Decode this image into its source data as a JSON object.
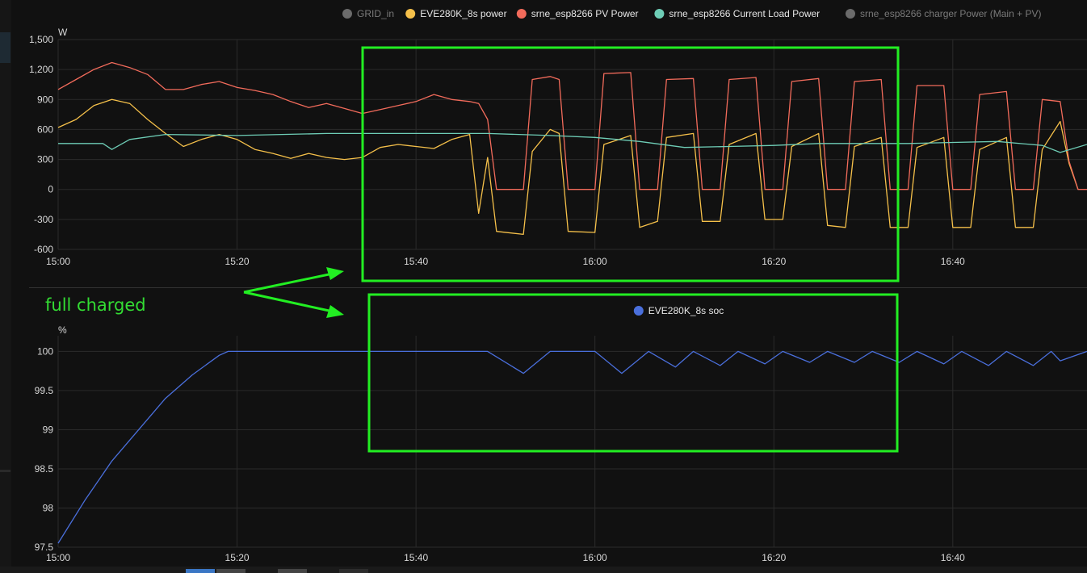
{
  "annotation": {
    "text": "full charged",
    "color": "#22ee22"
  },
  "chart_data": [
    {
      "type": "line",
      "unit_label": "W",
      "x_axis": {
        "range": [
          "15:00",
          "16:55"
        ],
        "ticks": [
          "15:00",
          "15:20",
          "15:40",
          "16:00",
          "16:20",
          "16:40"
        ]
      },
      "y_axis": {
        "range": [
          -600,
          1500
        ],
        "ticks": [
          "-600",
          "-300",
          "0",
          "300",
          "600",
          "900",
          "1,200",
          "1,500"
        ]
      },
      "grid": true,
      "legend_position": "top-right",
      "series": [
        {
          "name": "GRID_in",
          "color": "#6b6b6b",
          "hidden": true,
          "points": []
        },
        {
          "name": "EVE280K_8s power",
          "color": "#f5c04a",
          "points": [
            [
              "15:00",
              620
            ],
            [
              "15:02",
              700
            ],
            [
              "15:04",
              840
            ],
            [
              "15:06",
              900
            ],
            [
              "15:08",
              860
            ],
            [
              "15:10",
              700
            ],
            [
              "15:12",
              560
            ],
            [
              "15:14",
              430
            ],
            [
              "15:16",
              500
            ],
            [
              "15:18",
              550
            ],
            [
              "15:20",
              500
            ],
            [
              "15:22",
              400
            ],
            [
              "15:24",
              360
            ],
            [
              "15:26",
              310
            ],
            [
              "15:28",
              360
            ],
            [
              "15:30",
              320
            ],
            [
              "15:32",
              300
            ],
            [
              "15:34",
              320
            ],
            [
              "15:36",
              420
            ],
            [
              "15:38",
              450
            ],
            [
              "15:40",
              430
            ],
            [
              "15:42",
              410
            ],
            [
              "15:44",
              500
            ],
            [
              "15:46",
              550
            ],
            [
              "15:47",
              -240
            ],
            [
              "15:48",
              320
            ],
            [
              "15:49",
              -420
            ],
            [
              "15:52",
              -450
            ],
            [
              "15:53",
              380
            ],
            [
              "15:55",
              600
            ],
            [
              "15:56",
              560
            ],
            [
              "15:57",
              -420
            ],
            [
              "16:00",
              -430
            ],
            [
              "16:01",
              450
            ],
            [
              "16:04",
              540
            ],
            [
              "16:05",
              -380
            ],
            [
              "16:07",
              -320
            ],
            [
              "16:08",
              520
            ],
            [
              "16:11",
              560
            ],
            [
              "16:12",
              -320
            ],
            [
              "16:14",
              -320
            ],
            [
              "16:15",
              450
            ],
            [
              "16:18",
              560
            ],
            [
              "16:19",
              -300
            ],
            [
              "16:21",
              -300
            ],
            [
              "16:22",
              430
            ],
            [
              "16:25",
              560
            ],
            [
              "16:26",
              -360
            ],
            [
              "16:28",
              -380
            ],
            [
              "16:29",
              430
            ],
            [
              "16:32",
              520
            ],
            [
              "16:33",
              -380
            ],
            [
              "16:35",
              -380
            ],
            [
              "16:36",
              420
            ],
            [
              "16:39",
              520
            ],
            [
              "16:40",
              -380
            ],
            [
              "16:42",
              -380
            ],
            [
              "16:43",
              400
            ],
            [
              "16:46",
              520
            ],
            [
              "16:47",
              -380
            ],
            [
              "16:49",
              -380
            ],
            [
              "16:50",
              400
            ],
            [
              "16:52",
              680
            ],
            [
              "16:53",
              260
            ],
            [
              "16:54",
              0
            ]
          ]
        },
        {
          "name": "srne_esp8266 PV Power",
          "color": "#f26b5b",
          "points": [
            [
              "15:00",
              1000
            ],
            [
              "15:02",
              1100
            ],
            [
              "15:04",
              1200
            ],
            [
              "15:06",
              1270
            ],
            [
              "15:08",
              1220
            ],
            [
              "15:10",
              1150
            ],
            [
              "15:12",
              1000
            ],
            [
              "15:14",
              1000
            ],
            [
              "15:16",
              1050
            ],
            [
              "15:18",
              1080
            ],
            [
              "15:20",
              1020
            ],
            [
              "15:22",
              990
            ],
            [
              "15:24",
              950
            ],
            [
              "15:26",
              880
            ],
            [
              "15:28",
              820
            ],
            [
              "15:30",
              860
            ],
            [
              "15:32",
              810
            ],
            [
              "15:34",
              760
            ],
            [
              "15:36",
              800
            ],
            [
              "15:38",
              840
            ],
            [
              "15:40",
              880
            ],
            [
              "15:42",
              950
            ],
            [
              "15:44",
              900
            ],
            [
              "15:46",
              880
            ],
            [
              "15:47",
              860
            ],
            [
              "15:48",
              700
            ],
            [
              "15:49",
              0
            ],
            [
              "15:52",
              0
            ],
            [
              "15:53",
              1100
            ],
            [
              "15:55",
              1130
            ],
            [
              "15:56",
              1100
            ],
            [
              "15:57",
              0
            ],
            [
              "16:00",
              0
            ],
            [
              "16:01",
              1160
            ],
            [
              "16:04",
              1170
            ],
            [
              "16:05",
              0
            ],
            [
              "16:07",
              0
            ],
            [
              "16:08",
              1100
            ],
            [
              "16:11",
              1110
            ],
            [
              "16:12",
              0
            ],
            [
              "16:14",
              0
            ],
            [
              "16:15",
              1100
            ],
            [
              "16:18",
              1120
            ],
            [
              "16:19",
              0
            ],
            [
              "16:21",
              0
            ],
            [
              "16:22",
              1080
            ],
            [
              "16:25",
              1110
            ],
            [
              "16:26",
              0
            ],
            [
              "16:28",
              0
            ],
            [
              "16:29",
              1080
            ],
            [
              "16:32",
              1100
            ],
            [
              "16:33",
              0
            ],
            [
              "16:35",
              0
            ],
            [
              "16:36",
              1040
            ],
            [
              "16:39",
              1040
            ],
            [
              "16:40",
              0
            ],
            [
              "16:42",
              0
            ],
            [
              "16:43",
              950
            ],
            [
              "16:46",
              980
            ],
            [
              "16:47",
              0
            ],
            [
              "16:49",
              0
            ],
            [
              "16:50",
              900
            ],
            [
              "16:52",
              880
            ],
            [
              "16:53",
              280
            ],
            [
              "16:54",
              0
            ],
            [
              "16:55",
              0
            ]
          ]
        },
        {
          "name": "srne_esp8266 Current Load Power",
          "color": "#6ecdb6",
          "points": [
            [
              "15:00",
              460
            ],
            [
              "15:05",
              460
            ],
            [
              "15:06",
              400
            ],
            [
              "15:08",
              500
            ],
            [
              "15:12",
              550
            ],
            [
              "15:20",
              540
            ],
            [
              "15:30",
              560
            ],
            [
              "15:40",
              560
            ],
            [
              "15:48",
              560
            ],
            [
              "15:55",
              540
            ],
            [
              "16:00",
              520
            ],
            [
              "16:05",
              480
            ],
            [
              "16:10",
              420
            ],
            [
              "16:15",
              430
            ],
            [
              "16:20",
              440
            ],
            [
              "16:25",
              460
            ],
            [
              "16:30",
              460
            ],
            [
              "16:35",
              460
            ],
            [
              "16:40",
              470
            ],
            [
              "16:45",
              480
            ],
            [
              "16:50",
              440
            ],
            [
              "16:52",
              370
            ],
            [
              "16:55",
              450
            ]
          ]
        },
        {
          "name": "srne_esp8266 charger Power (Main + PV)",
          "color": "#6b6b6b",
          "hidden": true,
          "points": []
        }
      ]
    },
    {
      "type": "line",
      "unit_label": "%",
      "x_axis": {
        "range": [
          "15:00",
          "16:55"
        ],
        "ticks": [
          "15:00",
          "15:20",
          "15:40",
          "16:00",
          "16:20",
          "16:40"
        ]
      },
      "y_axis": {
        "range": [
          97.5,
          100.2
        ],
        "ticks": [
          "97.5",
          "98",
          "98.5",
          "99",
          "99.5",
          "100"
        ]
      },
      "grid": true,
      "legend_position": "top-center",
      "series": [
        {
          "name": "EVE280K_8s soc",
          "color": "#4a6fdc",
          "points": [
            [
              "15:00",
              97.55
            ],
            [
              "15:03",
              98.1
            ],
            [
              "15:06",
              98.6
            ],
            [
              "15:09",
              99.0
            ],
            [
              "15:12",
              99.4
            ],
            [
              "15:15",
              99.7
            ],
            [
              "15:18",
              99.95
            ],
            [
              "15:19",
              100
            ],
            [
              "15:30",
              100
            ],
            [
              "15:40",
              100
            ],
            [
              "15:48",
              100
            ],
            [
              "15:52",
              99.72
            ],
            [
              "15:55",
              100
            ],
            [
              "16:00",
              100
            ],
            [
              "16:03",
              99.72
            ],
            [
              "16:06",
              100
            ],
            [
              "16:09",
              99.8
            ],
            [
              "16:11",
              100
            ],
            [
              "16:14",
              99.82
            ],
            [
              "16:16",
              100
            ],
            [
              "16:19",
              99.84
            ],
            [
              "16:21",
              100
            ],
            [
              "16:24",
              99.86
            ],
            [
              "16:26",
              100
            ],
            [
              "16:29",
              99.86
            ],
            [
              "16:31",
              100
            ],
            [
              "16:34",
              99.86
            ],
            [
              "16:36",
              100
            ],
            [
              "16:39",
              99.84
            ],
            [
              "16:41",
              100
            ],
            [
              "16:44",
              99.82
            ],
            [
              "16:46",
              100
            ],
            [
              "16:49",
              99.82
            ],
            [
              "16:51",
              100
            ],
            [
              "16:52",
              99.88
            ],
            [
              "16:55",
              100
            ]
          ]
        }
      ]
    }
  ]
}
